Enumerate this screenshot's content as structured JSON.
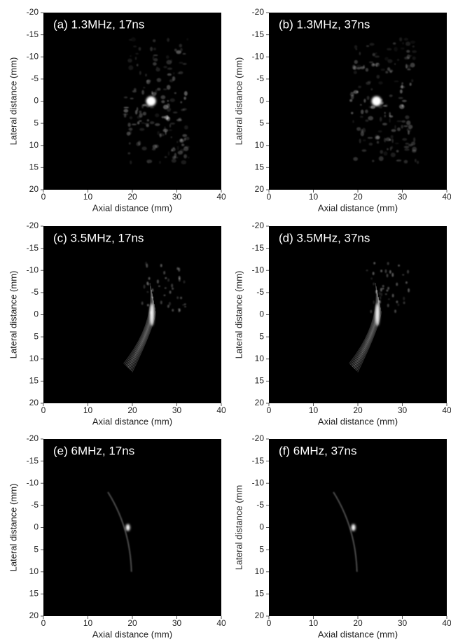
{
  "chart_data": [
    {
      "type": "image",
      "title": "(a) 1.3MHz, 17ns",
      "xlabel": "Axial distance (mm)",
      "ylabel": "Lateral distance (mm)",
      "xlim": [
        0,
        40
      ],
      "ylim": [
        20,
        -20
      ],
      "xticks": [
        0,
        10,
        20,
        30,
        40
      ],
      "yticks": [
        -20,
        -15,
        -10,
        -5,
        0,
        5,
        10,
        15,
        20
      ]
    },
    {
      "type": "image",
      "title": "(b) 1.3MHz, 37ns",
      "xlabel": "Axial distance (mm)",
      "ylabel": "Lateral distance (mm)",
      "xlim": [
        0,
        40
      ],
      "ylim": [
        20,
        -20
      ],
      "xticks": [
        0,
        10,
        20,
        30,
        40
      ],
      "yticks": [
        -20,
        -15,
        -10,
        -5,
        0,
        5,
        10,
        15,
        20
      ]
    },
    {
      "type": "image",
      "title": "(c) 3.5MHz, 17ns",
      "xlabel": "Axial distance (mm)",
      "ylabel": "Lateral distance (mm)",
      "xlim": [
        0,
        40
      ],
      "ylim": [
        20,
        -20
      ],
      "xticks": [
        0,
        10,
        20,
        30,
        40
      ],
      "yticks": [
        -20,
        -15,
        -10,
        -5,
        0,
        5,
        10,
        15,
        20
      ]
    },
    {
      "type": "image",
      "title": "(d) 3.5MHz, 37ns",
      "xlabel": "Axial distance (mm)",
      "ylabel": "Lateral distance (mm)",
      "xlim": [
        0,
        40
      ],
      "ylim": [
        20,
        -20
      ],
      "xticks": [
        0,
        10,
        20,
        30,
        40
      ],
      "yticks": [
        -20,
        -15,
        -10,
        -5,
        0,
        5,
        10,
        15,
        20
      ]
    },
    {
      "type": "image",
      "title": "(e) 6MHz, 17ns",
      "xlabel": "Axial distance (mm)",
      "ylabel": "Lateral distance (mm)",
      "xlim": [
        0,
        40
      ],
      "ylim": [
        20,
        -20
      ],
      "xticks": [
        0,
        10,
        20,
        30,
        40
      ],
      "yticks": [
        -20,
        -15,
        -10,
        -5,
        0,
        5,
        10,
        15,
        20
      ]
    },
    {
      "type": "image",
      "title": "(f) 6MHz, 37ns",
      "xlabel": "Axial distance (mm)",
      "ylabel": "Lateral distance (mm",
      "xlim": [
        0,
        40
      ],
      "ylim": [
        20,
        -20
      ],
      "xticks": [
        0,
        10,
        20,
        30,
        40
      ],
      "yticks": [
        -20,
        -15,
        -10,
        -5,
        0,
        5,
        10,
        15,
        20
      ]
    }
  ]
}
